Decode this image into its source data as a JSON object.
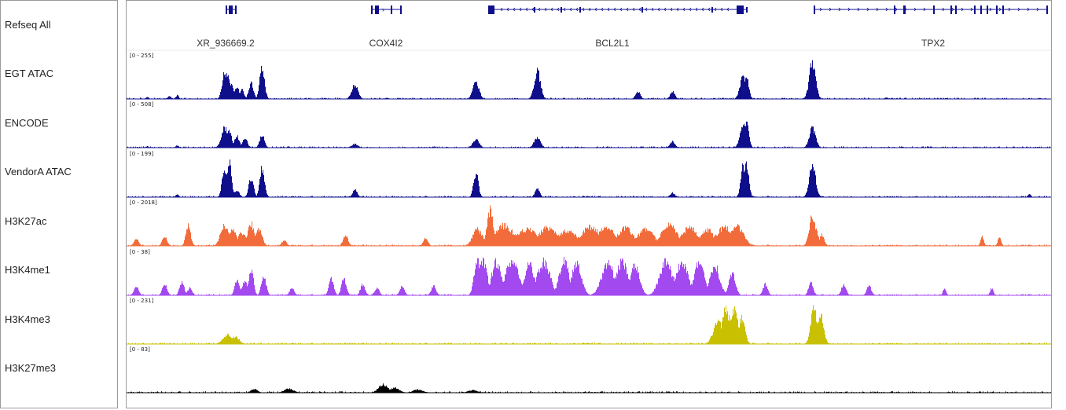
{
  "tracks": [
    {
      "id": "refseq",
      "name": "Refseq All",
      "type": "gene"
    },
    {
      "id": "egt",
      "name": "EGT ATAC",
      "type": "signal",
      "range": "[0 - 255]",
      "color": "#0f0f8c"
    },
    {
      "id": "encode",
      "name": "ENCODE",
      "type": "signal",
      "range": "[0 - 508]",
      "color": "#0f0f8c"
    },
    {
      "id": "vendora",
      "name": "VendorA ATAC",
      "type": "signal",
      "range": "[0 - 199]",
      "color": "#0f0f8c"
    },
    {
      "id": "h3k27ac",
      "name": "H3K27ac",
      "type": "signal",
      "range": "[0 - 2018]",
      "color": "#f26b3a"
    },
    {
      "id": "h3k4me1",
      "name": "H3K4me1",
      "type": "signal",
      "range": "[0 - 38]",
      "color": "#a349f0"
    },
    {
      "id": "h3k4me3",
      "name": "H3K4me3",
      "type": "signal",
      "range": "[0 - 231]",
      "color": "#c8c000"
    },
    {
      "id": "h3k27me3",
      "name": "H3K27me3",
      "type": "signal",
      "range": "[0 - 83]",
      "color": "#000000"
    }
  ],
  "genes": [
    {
      "name": "XR_936669.2",
      "strand": "+"
    },
    {
      "name": "COX4I2",
      "strand": "+"
    },
    {
      "name": "BCL2L1",
      "strand": "-"
    },
    {
      "name": "TPX2",
      "strand": "+"
    }
  ],
  "gene_color": "#0f0f8c"
}
